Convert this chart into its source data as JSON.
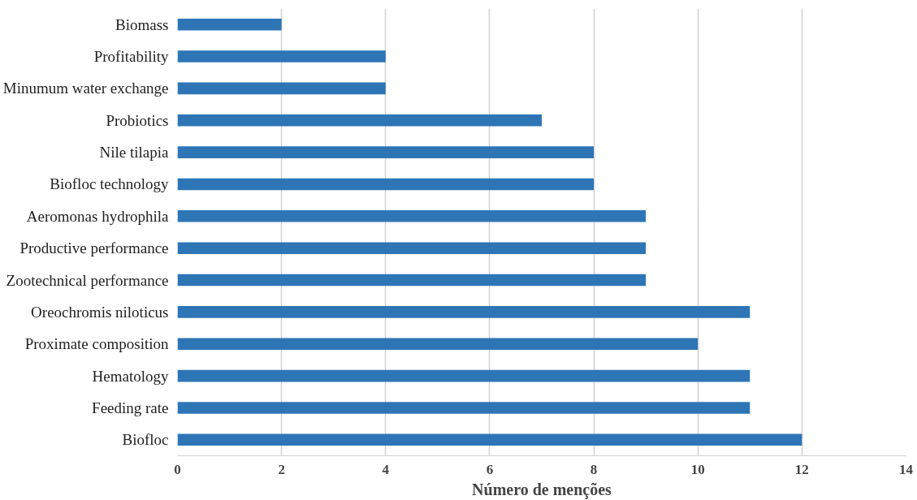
{
  "chart_data": {
    "type": "bar",
    "orientation": "horizontal",
    "xlabel": "Número de menções",
    "categories": [
      "Biomass",
      "Profitability",
      "Minumum water exchange",
      "Probiotics",
      "Nile tilapia",
      "Biofloc technology",
      "Aeromonas hydrophila",
      "Productive performance",
      "Zootechnical performance",
      "Oreochromis niloticus",
      "Proximate composition",
      "Hematology",
      "Feeding rate",
      "Biofloc"
    ],
    "values": [
      2,
      4,
      4,
      7,
      8,
      8,
      9,
      9,
      9,
      11,
      10,
      11,
      11,
      12
    ],
    "color": "#2e75b6",
    "xlim": [
      0,
      14
    ],
    "xticks": [
      0,
      2,
      4,
      6,
      8,
      10,
      12,
      14
    ],
    "grid": "x"
  }
}
